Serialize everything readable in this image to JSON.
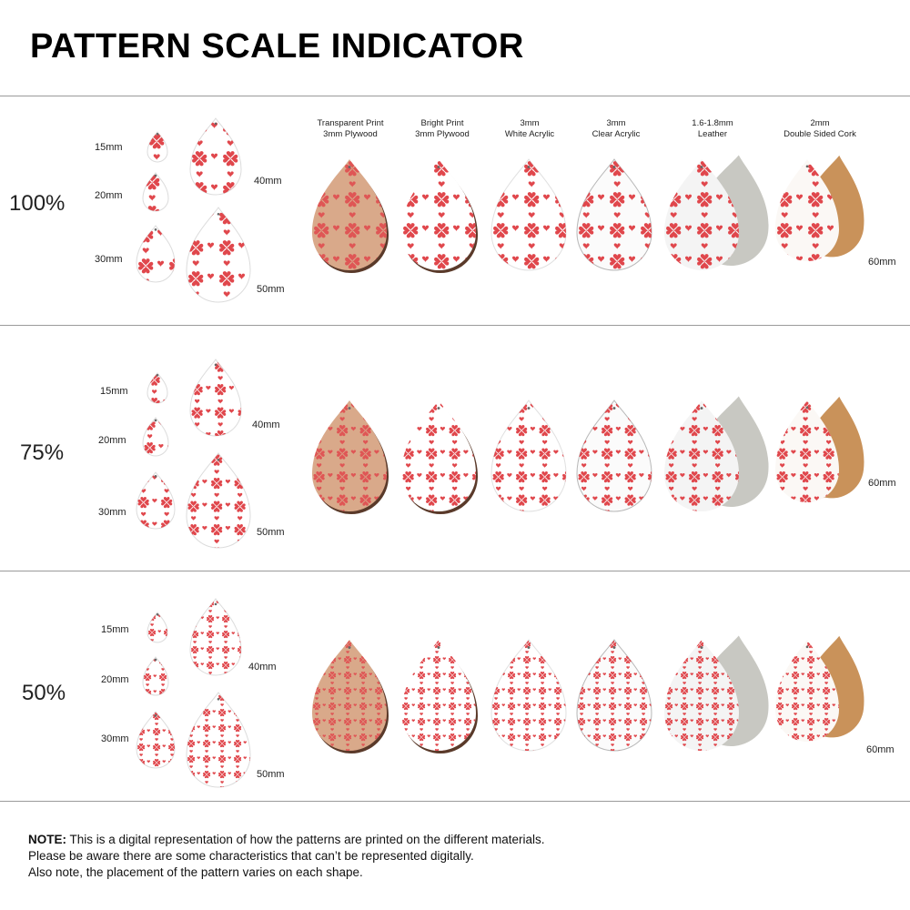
{
  "page": {
    "title": "PATTERN SCALE INDICATOR"
  },
  "materials": [
    {
      "line1": "Transparent Print",
      "line2": "3mm Plywood",
      "key": "plywood-transparent"
    },
    {
      "line1": "Bright Print",
      "line2": "3mm Plywood",
      "key": "plywood-bright"
    },
    {
      "line1": "3mm",
      "line2": "White Acrylic",
      "key": "white-acrylic"
    },
    {
      "line1": "3mm",
      "line2": "Clear Acrylic",
      "key": "clear-acrylic"
    },
    {
      "line1": "1.6-1.8mm",
      "line2": "Leather",
      "key": "leather"
    },
    {
      "line1": "2mm",
      "line2": "Double Sided Cork",
      "key": "cork"
    }
  ],
  "sections": [
    {
      "scale": "100%",
      "sizes": {
        "s15": "15mm",
        "s20": "20mm",
        "s30": "30mm",
        "s40": "40mm",
        "s50": "50mm"
      },
      "material_size": "60mm"
    },
    {
      "scale": "75%",
      "sizes": {
        "s15": "15mm",
        "s20": "20mm",
        "s30": "30mm",
        "s40": "40mm",
        "s50": "50mm"
      },
      "material_size": "60mm"
    },
    {
      "scale": "50%",
      "sizes": {
        "s15": "15mm",
        "s20": "20mm",
        "s30": "30mm",
        "s40": "40mm",
        "s50": "50mm"
      },
      "material_size": "60mm"
    }
  ],
  "note": {
    "label": "NOTE:",
    "line1": "This is a digital representation of how the patterns are printed on the different materials.",
    "line2": "Please be aware there are some characteristics that can’t be represented digitally.",
    "line3": "Also note, the placement of the pattern varies on each shape."
  },
  "colors": {
    "pattern_red": "#e0474c",
    "plywood": "#d9a98a",
    "plywood_edge": "#5a3a2a",
    "acrylic_white": "#ffffff",
    "leather_back": "#c8c8c2",
    "cork": "#c9925a",
    "rule": "#9a9a9a"
  },
  "pattern_scales": [
    1.0,
    0.75,
    0.5
  ],
  "icons": {
    "pattern_motif": "heart-clover",
    "shape": "teardrop-earring"
  }
}
